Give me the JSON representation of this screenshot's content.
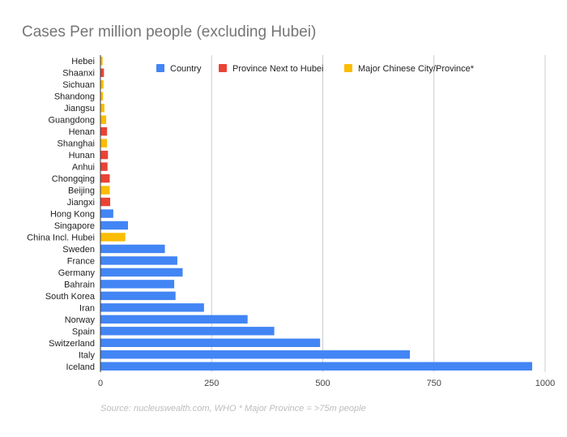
{
  "chart_data": {
    "type": "bar",
    "orientation": "horizontal",
    "title": "Cases Per million people (excluding Hubei)",
    "note": "Source: nucleuswealth.com, WHO   * Major Province = >75m people",
    "xlim": [
      0,
      1000
    ],
    "xticks": [
      0,
      250,
      500,
      750,
      1000
    ],
    "grid": true,
    "legend_position": "top",
    "legend": [
      {
        "name": "Country",
        "color": "#4285f4"
      },
      {
        "name": "Province Next to Hubei",
        "color": "#ea4335"
      },
      {
        "name": "Major Chinese City/Province*",
        "color": "#fbbc04"
      }
    ],
    "categories": [
      "Hebei",
      "Shaanxi",
      "Sichuan",
      "Shandong",
      "Jiangsu",
      "Guangdong",
      "Henan",
      "Shanghai",
      "Hunan",
      "Anhui",
      "Chongqing",
      "Beijing",
      "Jiangxi",
      "Hong Kong",
      "Singapore",
      "China Incl. Hubei",
      "Sweden",
      "France",
      "Germany",
      "Bahrain",
      "South Korea",
      "Iran",
      "Norway",
      "Spain",
      "Switzerland",
      "Italy",
      "Iceland"
    ],
    "values": [
      4,
      7,
      6,
      5,
      8,
      12,
      14,
      14,
      16,
      15,
      20,
      20,
      21,
      28,
      61,
      55,
      144,
      172,
      184,
      165,
      168,
      232,
      330,
      390,
      493,
      695,
      970
    ],
    "groups": [
      "Major Chinese City/Province*",
      "Province Next to Hubei",
      "Major Chinese City/Province*",
      "Major Chinese City/Province*",
      "Major Chinese City/Province*",
      "Major Chinese City/Province*",
      "Province Next to Hubei",
      "Major Chinese City/Province*",
      "Province Next to Hubei",
      "Province Next to Hubei",
      "Province Next to Hubei",
      "Major Chinese City/Province*",
      "Province Next to Hubei",
      "Country",
      "Country",
      "Major Chinese City/Province*",
      "Country",
      "Country",
      "Country",
      "Country",
      "Country",
      "Country",
      "Country",
      "Country",
      "Country",
      "Country",
      "Country"
    ]
  }
}
